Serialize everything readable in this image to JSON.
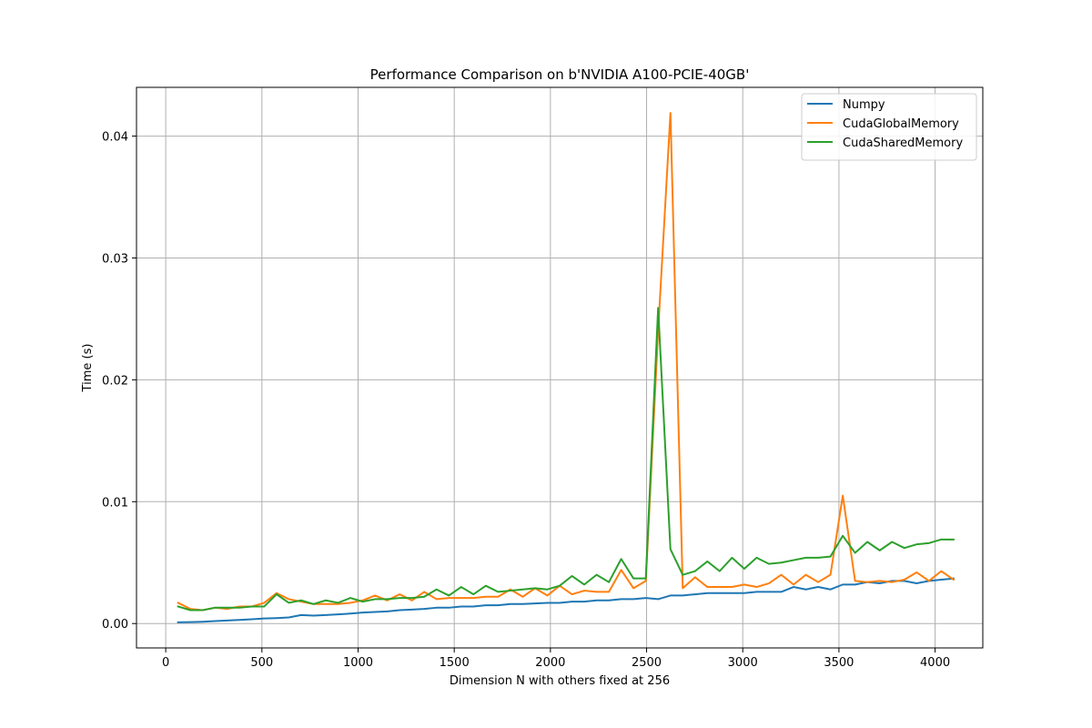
{
  "chart_data": {
    "type": "line",
    "title": "Performance Comparison on b'NVIDIA A100-PCIE-40GB'",
    "xlabel": "Dimension N with others fixed at 256",
    "ylabel": "Time (s)",
    "xlim": [
      -152,
      4248
    ],
    "ylim": [
      -0.002,
      0.044
    ],
    "xticks": [
      0,
      500,
      1000,
      1500,
      2000,
      2500,
      3000,
      3500,
      4000
    ],
    "xtick_labels": [
      "0",
      "500",
      "1000",
      "1500",
      "2000",
      "2500",
      "3000",
      "3500",
      "4000"
    ],
    "yticks": [
      0.0,
      0.01,
      0.02,
      0.03,
      0.04
    ],
    "ytick_labels": [
      "0.00",
      "0.01",
      "0.02",
      "0.03",
      "0.04"
    ],
    "grid": true,
    "legend_position": "upper right",
    "x": [
      64,
      128,
      192,
      256,
      320,
      384,
      448,
      512,
      576,
      640,
      704,
      768,
      832,
      896,
      960,
      1024,
      1088,
      1152,
      1216,
      1280,
      1344,
      1408,
      1472,
      1536,
      1600,
      1664,
      1728,
      1792,
      1856,
      1920,
      1984,
      2048,
      2112,
      2176,
      2240,
      2304,
      2368,
      2432,
      2496,
      2560,
      2624,
      2688,
      2752,
      2816,
      2880,
      2944,
      3008,
      3072,
      3136,
      3200,
      3264,
      3328,
      3392,
      3456,
      3520,
      3584,
      3648,
      3712,
      3776,
      3840,
      3904,
      3968,
      4032,
      4096
    ],
    "series": [
      {
        "name": "Numpy",
        "color": "#1f77b4",
        "values": [
          0.0001,
          0.00012,
          0.00015,
          0.0002,
          0.00025,
          0.0003,
          0.00035,
          0.00042,
          0.00045,
          0.0005,
          0.0007,
          0.00065,
          0.0007,
          0.00075,
          0.00082,
          0.0009,
          0.00095,
          0.001,
          0.0011,
          0.00115,
          0.0012,
          0.0013,
          0.0013,
          0.0014,
          0.0014,
          0.0015,
          0.0015,
          0.0016,
          0.0016,
          0.00165,
          0.0017,
          0.0017,
          0.0018,
          0.0018,
          0.0019,
          0.0019,
          0.002,
          0.002,
          0.0021,
          0.002,
          0.0023,
          0.0023,
          0.0024,
          0.0025,
          0.0025,
          0.0025,
          0.0025,
          0.0026,
          0.0026,
          0.0026,
          0.003,
          0.0028,
          0.003,
          0.0028,
          0.0032,
          0.0032,
          0.0034,
          0.0033,
          0.0035,
          0.0035,
          0.0033,
          0.0035,
          0.0036,
          0.0037
        ]
      },
      {
        "name": "CudaGlobalMemory",
        "color": "#ff7f0e",
        "values": [
          0.0017,
          0.0012,
          0.0011,
          0.0013,
          0.0012,
          0.0014,
          0.0014,
          0.0017,
          0.0025,
          0.002,
          0.0018,
          0.0016,
          0.0016,
          0.0016,
          0.0017,
          0.0019,
          0.0023,
          0.0019,
          0.0024,
          0.0019,
          0.0026,
          0.002,
          0.0021,
          0.0021,
          0.0021,
          0.0022,
          0.0022,
          0.0028,
          0.0022,
          0.0029,
          0.0023,
          0.0031,
          0.0024,
          0.0027,
          0.0026,
          0.0026,
          0.0044,
          0.0029,
          0.0035,
          0.024,
          0.0419,
          0.0029,
          0.0038,
          0.003,
          0.003,
          0.003,
          0.0032,
          0.003,
          0.0033,
          0.004,
          0.0032,
          0.004,
          0.0034,
          0.004,
          0.0105,
          0.0035,
          0.0034,
          0.0035,
          0.0034,
          0.0036,
          0.0042,
          0.0035,
          0.0043,
          0.0036
        ]
      },
      {
        "name": "CudaSharedMemory",
        "color": "#2ca02c",
        "values": [
          0.0014,
          0.0011,
          0.0011,
          0.0013,
          0.0013,
          0.0013,
          0.0014,
          0.0014,
          0.0024,
          0.0017,
          0.0019,
          0.0016,
          0.0019,
          0.0017,
          0.0021,
          0.0018,
          0.002,
          0.002,
          0.0021,
          0.0021,
          0.0022,
          0.0028,
          0.0023,
          0.003,
          0.0024,
          0.0031,
          0.0026,
          0.0027,
          0.0028,
          0.0029,
          0.0028,
          0.0031,
          0.0039,
          0.0032,
          0.004,
          0.0034,
          0.0053,
          0.0037,
          0.0037,
          0.0259,
          0.0061,
          0.004,
          0.0043,
          0.0051,
          0.0043,
          0.0054,
          0.0045,
          0.0054,
          0.0049,
          0.005,
          0.0052,
          0.0054,
          0.0054,
          0.0055,
          0.0072,
          0.0058,
          0.0067,
          0.006,
          0.0067,
          0.0062,
          0.0065,
          0.0066,
          0.0069,
          0.0069
        ]
      }
    ]
  }
}
